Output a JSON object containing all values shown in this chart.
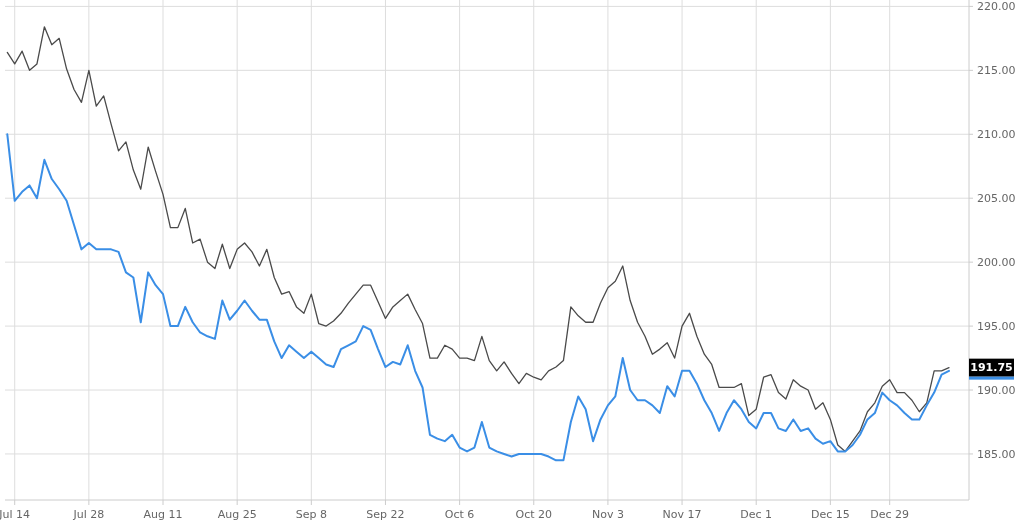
{
  "chart_data": {
    "type": "line",
    "categories": [
      null,
      "Jul 14",
      null,
      null,
      null,
      null,
      null,
      null,
      null,
      null,
      null,
      "Jul 28",
      null,
      null,
      null,
      null,
      null,
      null,
      null,
      null,
      null,
      "Aug 11",
      null,
      null,
      null,
      null,
      null,
      null,
      null,
      null,
      null,
      "Aug 25",
      null,
      null,
      null,
      null,
      null,
      null,
      null,
      null,
      null,
      "Sep 8",
      null,
      null,
      null,
      null,
      null,
      null,
      null,
      null,
      null,
      "Sep 22",
      null,
      null,
      null,
      null,
      null,
      null,
      null,
      null,
      null,
      "Oct 6",
      null,
      null,
      null,
      null,
      null,
      null,
      null,
      null,
      null,
      "Oct 20",
      null,
      null,
      null,
      null,
      null,
      null,
      null,
      null,
      null,
      "Nov 3",
      null,
      null,
      null,
      null,
      null,
      null,
      null,
      null,
      null,
      "Nov 17",
      null,
      null,
      null,
      null,
      null,
      null,
      null,
      null,
      null,
      "Dec 1",
      null,
      null,
      null,
      null,
      null,
      null,
      null,
      null,
      null,
      "Dec 15",
      null,
      null,
      null,
      null,
      null,
      null,
      null,
      "Dec 29",
      null,
      null,
      null,
      null,
      null,
      null,
      null,
      null
    ],
    "series": [
      {
        "color": "#4a4a4a",
        "values": [
          216.4,
          215.5,
          216.5,
          215.0,
          215.5,
          218.4,
          217.0,
          217.5,
          215.1,
          213.5,
          212.5,
          215.0,
          212.2,
          213.0,
          210.8,
          208.7,
          209.4,
          207.2,
          205.7,
          209.0,
          207.1,
          205.3,
          202.7,
          202.7,
          204.2,
          201.5,
          201.8,
          200.0,
          199.5,
          201.4,
          199.5,
          201.0,
          201.5,
          200.8,
          199.7,
          201.0,
          198.8,
          197.5,
          197.7,
          196.5,
          196.0,
          197.5,
          195.2,
          195.0,
          195.4,
          196.0,
          196.8,
          197.5,
          198.2,
          198.2,
          196.9,
          195.6,
          196.5,
          197.0,
          197.5,
          196.3,
          195.2,
          192.5,
          192.5,
          193.5,
          193.2,
          192.5,
          192.5,
          192.3,
          194.2,
          192.3,
          191.5,
          192.2,
          191.3,
          190.5,
          191.3,
          191.0,
          190.8,
          191.5,
          191.8,
          192.3,
          196.5,
          195.8,
          195.3,
          195.3,
          196.8,
          198.0,
          198.5,
          199.7,
          197.0,
          195.3,
          194.2,
          192.8,
          193.2,
          193.7,
          192.5,
          195.0,
          196.0,
          194.2,
          192.8,
          192.0,
          190.2,
          190.2,
          190.2,
          190.5,
          188.0,
          188.5,
          191.0,
          191.2,
          189.8,
          189.3,
          190.8,
          190.3,
          190.0,
          188.5,
          189.0,
          187.7,
          185.7,
          185.2,
          186.0,
          186.8,
          188.3,
          189.0,
          190.3,
          190.8,
          189.8,
          189.8,
          189.2,
          188.3,
          189.0,
          191.5,
          191.5,
          191.75
        ]
      },
      {
        "color": "#3a8ee6",
        "values": [
          210.0,
          204.8,
          205.5,
          206.0,
          205.0,
          208.0,
          206.5,
          205.7,
          204.8,
          202.9,
          201.0,
          201.5,
          201.0,
          201.0,
          201.0,
          200.8,
          199.2,
          198.8,
          195.3,
          199.2,
          198.2,
          197.5,
          195.0,
          195.0,
          196.5,
          195.3,
          194.5,
          194.2,
          194.0,
          197.0,
          195.5,
          196.2,
          197.0,
          196.2,
          195.5,
          195.5,
          193.8,
          192.5,
          193.5,
          193.0,
          192.5,
          193.0,
          192.5,
          192.0,
          191.8,
          193.2,
          193.5,
          193.8,
          195.0,
          194.7,
          193.2,
          191.8,
          192.2,
          192.0,
          193.5,
          191.5,
          190.2,
          186.5,
          186.2,
          186.0,
          186.5,
          185.5,
          185.2,
          185.5,
          187.5,
          185.5,
          185.2,
          185.0,
          184.8,
          185.0,
          185.0,
          185.0,
          185.0,
          184.8,
          184.5,
          184.5,
          187.5,
          189.5,
          188.5,
          186.0,
          187.7,
          188.8,
          189.5,
          192.5,
          190.0,
          189.2,
          189.2,
          188.8,
          188.2,
          190.3,
          189.5,
          191.5,
          191.5,
          190.5,
          189.2,
          188.2,
          186.8,
          188.2,
          189.2,
          188.5,
          187.5,
          187.0,
          188.2,
          188.2,
          187.0,
          186.8,
          187.7,
          186.8,
          187.0,
          186.2,
          185.8,
          186.0,
          185.2,
          185.2,
          185.7,
          186.5,
          187.7,
          188.2,
          189.8,
          189.2,
          188.8,
          188.2,
          187.7,
          187.7,
          188.8,
          189.8,
          191.2,
          191.5
        ]
      }
    ],
    "ylim": [
      181.4,
      220.5
    ],
    "yticks": [
      {
        "value": 185,
        "label": "185.00"
      },
      {
        "value": 190,
        "label": "190.00"
      },
      {
        "value": 195,
        "label": "195.00"
      },
      {
        "value": 200,
        "label": "200.00"
      },
      {
        "value": 205,
        "label": "205.00"
      },
      {
        "value": 210,
        "label": "210.00"
      },
      {
        "value": 215,
        "label": "215.00"
      },
      {
        "value": 220,
        "label": "220.00"
      }
    ],
    "grid": true,
    "annotations": [
      "191.75"
    ]
  }
}
